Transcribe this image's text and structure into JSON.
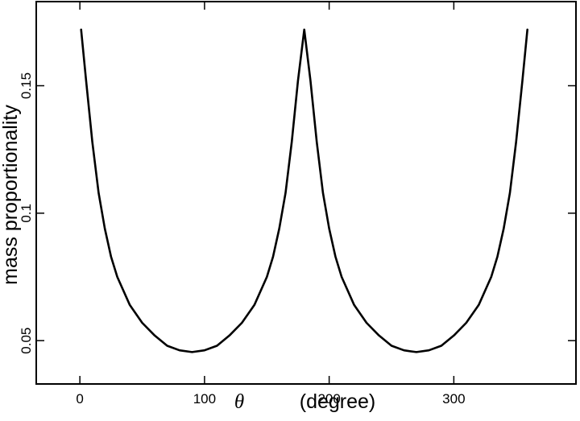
{
  "chart_data": {
    "type": "line",
    "title": "",
    "xlabel_symbol": "θ",
    "xlabel_unit": "(degree)",
    "ylabel": "mass proportionality",
    "xlim": [
      -35,
      398
    ],
    "ylim": [
      0.033,
      0.183
    ],
    "x_ticks": [
      {
        "value": 0,
        "label": "0"
      },
      {
        "value": 100,
        "label": "100"
      },
      {
        "value": 200,
        "label": "200"
      },
      {
        "value": 300,
        "label": "300"
      }
    ],
    "y_ticks": [
      {
        "value": 0.05,
        "label": "0.05"
      },
      {
        "value": 0.1,
        "label": "0.1"
      },
      {
        "value": 0.15,
        "label": "0.15"
      }
    ],
    "grid": false,
    "legend": "none",
    "line_color": "#000000",
    "series": [
      {
        "x": [
          1,
          5,
          10,
          15,
          20,
          25,
          30,
          40,
          50,
          60,
          70,
          80,
          90,
          100,
          110,
          120,
          130,
          140,
          150,
          155,
          160,
          165,
          170,
          175,
          180,
          185,
          190,
          195,
          200,
          205,
          210,
          220,
          230,
          240,
          250,
          260,
          270,
          280,
          290,
          300,
          310,
          320,
          330,
          335,
          340,
          345,
          350,
          355,
          359
        ],
        "values": [
          0.172,
          0.152,
          0.128,
          0.108,
          0.094,
          0.083,
          0.075,
          0.064,
          0.057,
          0.052,
          0.048,
          0.0462,
          0.0455,
          0.0462,
          0.048,
          0.052,
          0.057,
          0.064,
          0.075,
          0.083,
          0.094,
          0.108,
          0.128,
          0.152,
          0.172,
          0.152,
          0.128,
          0.108,
          0.094,
          0.083,
          0.075,
          0.064,
          0.057,
          0.052,
          0.048,
          0.0462,
          0.0455,
          0.0462,
          0.048,
          0.052,
          0.057,
          0.064,
          0.075,
          0.083,
          0.094,
          0.108,
          0.128,
          0.152,
          0.172
        ]
      }
    ]
  }
}
